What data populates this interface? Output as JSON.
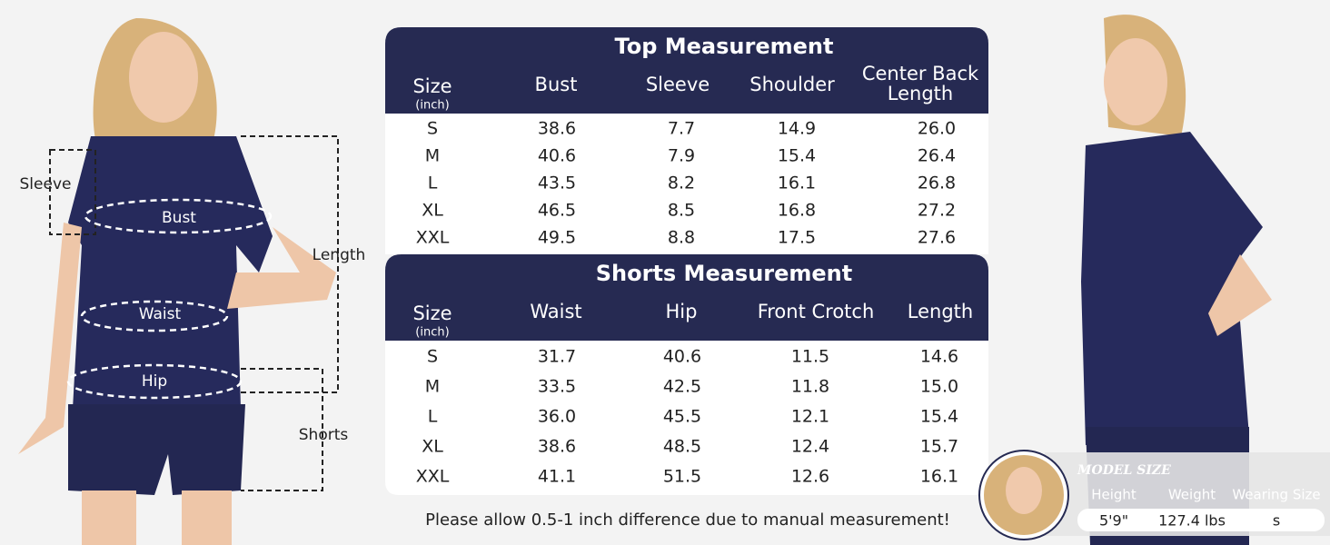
{
  "figure_labels": {
    "sleeve": "Sleeve",
    "bust": "Bust",
    "length": "Length",
    "waist": "Waist",
    "hip": "Hip",
    "shorts": "Shorts"
  },
  "top_table": {
    "title": "Top Measurement",
    "size_label": "Size",
    "size_unit": "(inch)",
    "headers": [
      "Bust",
      "Sleeve",
      "Shoulder",
      "Center Back Length"
    ],
    "rows": [
      [
        "S",
        "38.6",
        "7.7",
        "14.9",
        "26.0"
      ],
      [
        "M",
        "40.6",
        "7.9",
        "15.4",
        "26.4"
      ],
      [
        "L",
        "43.5",
        "8.2",
        "16.1",
        "26.8"
      ],
      [
        "XL",
        "46.5",
        "8.5",
        "16.8",
        "27.2"
      ],
      [
        "XXL",
        "49.5",
        "8.8",
        "17.5",
        "27.6"
      ]
    ]
  },
  "shorts_table": {
    "title": "Shorts Measurement",
    "size_label": "Size",
    "size_unit": "(inch)",
    "headers": [
      "Waist",
      "Hip",
      "Front Crotch",
      "Length"
    ],
    "rows": [
      [
        "S",
        "31.7",
        "40.6",
        "11.5",
        "14.6"
      ],
      [
        "M",
        "33.5",
        "42.5",
        "11.8",
        "15.0"
      ],
      [
        "L",
        "36.0",
        "45.5",
        "12.1",
        "15.4"
      ],
      [
        "XL",
        "38.6",
        "48.5",
        "12.4",
        "15.7"
      ],
      [
        "XXL",
        "41.1",
        "51.5",
        "12.6",
        "16.1"
      ]
    ]
  },
  "note": "Please allow 0.5-1 inch difference due to manual measurement!",
  "model_size": {
    "title": "MODEL SIZE",
    "headers": [
      "Height",
      "Weight",
      "Wearing Size"
    ],
    "values": [
      "5'9\"",
      "127.4 lbs",
      "s"
    ]
  }
}
